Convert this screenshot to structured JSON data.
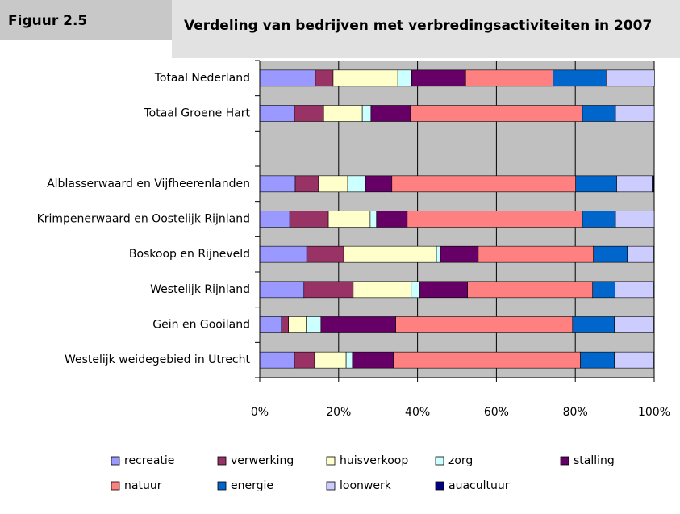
{
  "header": {
    "figure": "Figuur 2.5"
  },
  "chart_data": {
    "type": "stacked_barh",
    "title": "Verdeling van bedrijven met verbredingsactiviteiten in 2007",
    "categories": [
      "Totaal Nederland",
      "Totaal Groene Hart",
      null,
      "Alblasserwaard en Vijfheerenlanden",
      "Krimpenerwaard en Oostelijk Rijnland",
      "Boskoop en Rijneveld",
      "Westelijk Rijnland",
      "Gein en Gooiland",
      "Westelijk weidegebied in Utrecht"
    ],
    "series": [
      {
        "name": "recreatie",
        "color": "#9999ff",
        "values": [
          14.1,
          8.8,
          null,
          9.0,
          7.6,
          11.9,
          11.2,
          5.5,
          8.8
        ]
      },
      {
        "name": "verwerking",
        "color": "#993366",
        "values": [
          4.5,
          7.4,
          null,
          5.9,
          9.8,
          9.4,
          12.5,
          1.8,
          5.1
        ]
      },
      {
        "name": "huisverkoop",
        "color": "#ffffcc",
        "values": [
          16.4,
          9.8,
          null,
          7.4,
          10.6,
          23.5,
          14.7,
          4.5,
          8.0
        ]
      },
      {
        "name": "zorg",
        "color": "#ccffff",
        "values": [
          3.5,
          2.2,
          null,
          4.5,
          1.6,
          1.0,
          2.2,
          3.7,
          1.6
        ]
      },
      {
        "name": "stalling",
        "color": "#660066",
        "values": [
          13.7,
          10.0,
          null,
          6.7,
          7.8,
          9.6,
          12.1,
          19.0,
          10.4
        ]
      },
      {
        "name": "natuur",
        "color": "#ff8080",
        "values": [
          22.1,
          43.6,
          null,
          46.6,
          44.4,
          29.2,
          31.7,
          44.8,
          47.4
        ]
      },
      {
        "name": "energie",
        "color": "#0066cc",
        "values": [
          13.5,
          8.4,
          null,
          10.4,
          8.4,
          8.6,
          5.7,
          10.6,
          8.6
        ]
      },
      {
        "name": "loonwerk",
        "color": "#ccccff",
        "values": [
          12.3,
          9.8,
          null,
          9.0,
          9.8,
          6.7,
          9.8,
          10.0,
          10.0
        ]
      },
      {
        "name": "auacultuur",
        "color": "#000080",
        "values": [
          0,
          0,
          null,
          0.4,
          0,
          0,
          0,
          0,
          0
        ]
      }
    ],
    "xlim": [
      0,
      100
    ],
    "xticks": [
      {
        "value": 0,
        "label": "0%"
      },
      {
        "value": 20,
        "label": "20%"
      },
      {
        "value": 40,
        "label": "40%"
      },
      {
        "value": 60,
        "label": "60%"
      },
      {
        "value": 80,
        "label": "80%"
      },
      {
        "value": 100,
        "label": "100%"
      }
    ],
    "grid": true
  }
}
